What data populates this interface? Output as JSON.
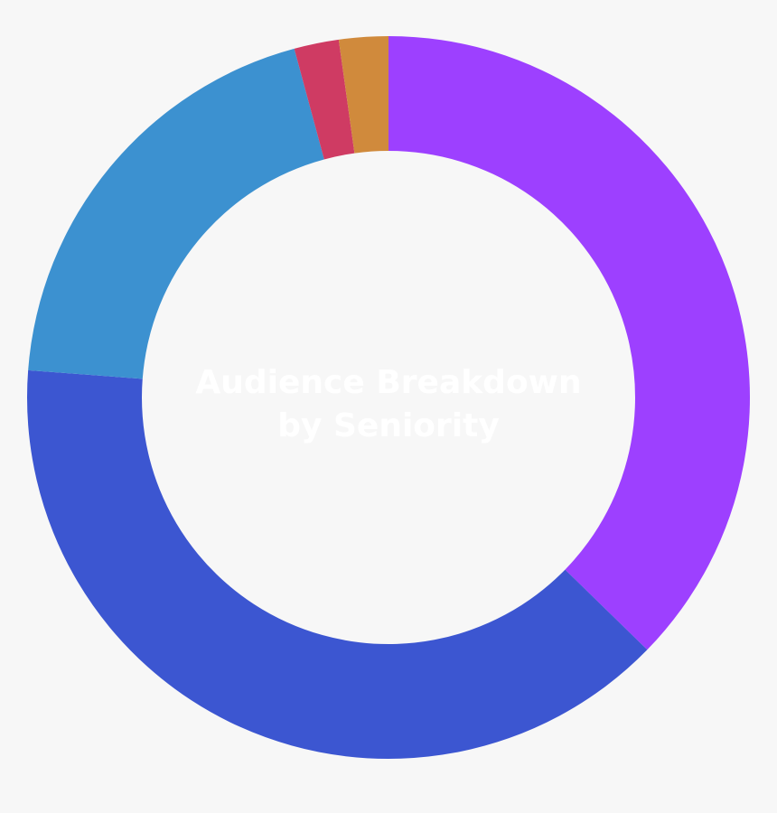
{
  "chart_data": {
    "type": "pie",
    "variant": "donut",
    "title_lines": [
      "Audience Breakdown",
      "by Seniority"
    ],
    "slices": [
      {
        "value": 37.3,
        "color": "#9d40ff"
      },
      {
        "value": 38.9,
        "color": "#3c56d1"
      },
      {
        "value": 19.6,
        "color": "#3c91d0"
      },
      {
        "value": 2.0,
        "color": "#cf3b63"
      },
      {
        "value": 2.2,
        "color": "#d08a3c"
      }
    ]
  }
}
